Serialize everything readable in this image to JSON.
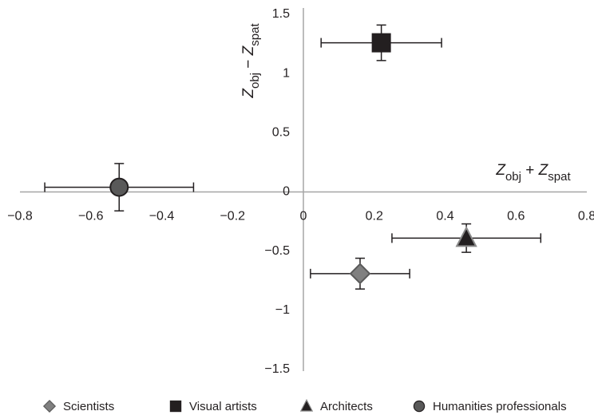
{
  "chart_data": {
    "type": "scatter",
    "xlabel": [
      {
        "text": "Z"
      },
      {
        "text": "obj",
        "sub": true
      },
      {
        "text": " + "
      },
      {
        "text": "Z"
      },
      {
        "text": "spat",
        "sub": true
      }
    ],
    "ylabel": [
      {
        "text": "Z"
      },
      {
        "text": "obj",
        "sub": true
      },
      {
        "text": " − "
      },
      {
        "text": "Z"
      },
      {
        "text": "spat",
        "sub": true
      }
    ],
    "xlim": [
      -0.8,
      0.8
    ],
    "xticks": [
      {
        "value": -0.8,
        "label": "−0.8"
      },
      {
        "value": -0.6,
        "label": "−0.6"
      },
      {
        "value": -0.4,
        "label": "−0.4"
      },
      {
        "value": -0.2,
        "label": "−0.2"
      },
      0,
      0.2,
      0.4,
      0.6,
      0.8
    ],
    "ylim": [
      -1.5,
      1.5
    ],
    "yticks": [
      {
        "value": -1.5,
        "label": "−1.5"
      },
      {
        "value": -1,
        "label": "−1"
      },
      {
        "value": -0.5,
        "label": "−0.5"
      },
      0,
      0.5,
      1,
      1.5
    ],
    "series": [
      {
        "name": "Scientists",
        "marker": "diamond",
        "color": "#808080",
        "edge": "#5a5a5a",
        "x": [
          0.16
        ],
        "values": [
          -0.69
        ],
        "x_err": [
          0.14
        ],
        "y_err": [
          0.13
        ]
      },
      {
        "name": "Visual artists",
        "marker": "square",
        "color": "#231f20",
        "edge": "#231f20",
        "x": [
          0.22
        ],
        "values": [
          1.26
        ],
        "x_err": [
          0.17
        ],
        "y_err": [
          0.15
        ]
      },
      {
        "name": "Architects",
        "marker": "triangle",
        "color": "#231f20",
        "edge": "#8a8a8a",
        "x": [
          0.46
        ],
        "values": [
          -0.39
        ],
        "x_err": [
          0.21
        ],
        "y_err": [
          0.12
        ]
      },
      {
        "name": "Humanities professionals",
        "marker": "circle",
        "color": "#595959",
        "edge": "#231f20",
        "x": [
          -0.52
        ],
        "values": [
          0.04
        ],
        "x_err": [
          0.21
        ],
        "y_err": [
          0.2
        ]
      }
    ]
  }
}
